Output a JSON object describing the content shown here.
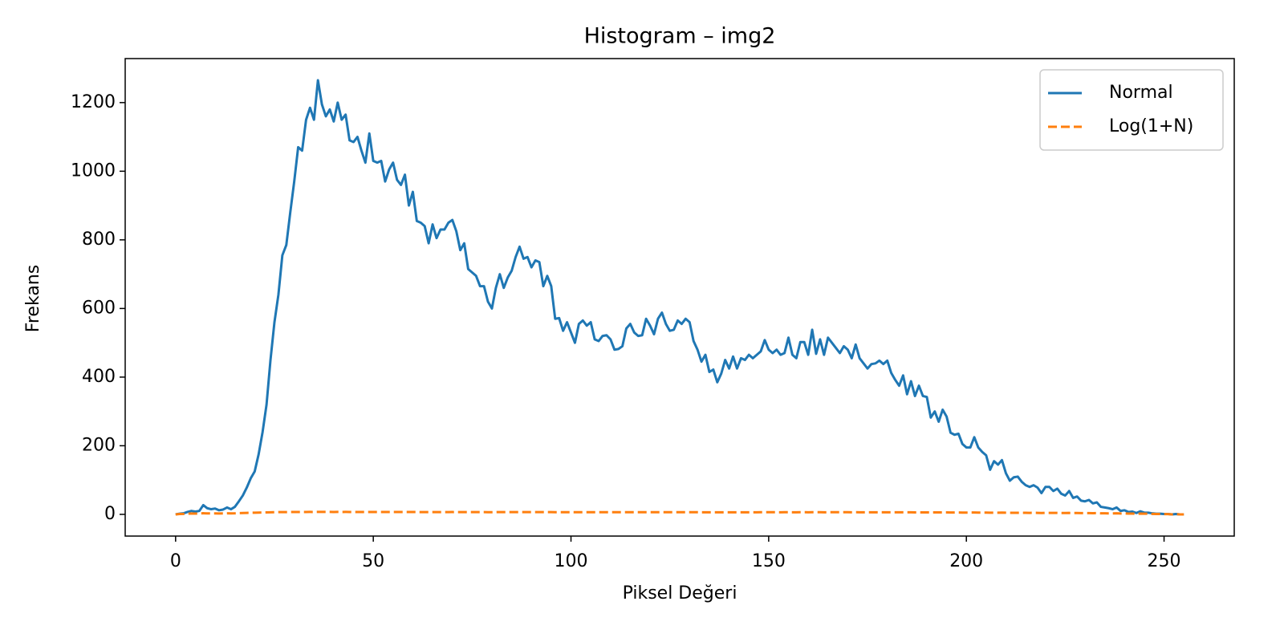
{
  "chart_data": {
    "type": "line",
    "title": "Histogram – img2",
    "x_label": "Piksel Değeri",
    "y_label": "Frekans",
    "x": [
      0,
      1,
      2,
      3,
      4,
      5,
      6,
      7,
      8,
      9,
      10,
      11,
      12,
      13,
      14,
      15,
      16,
      17,
      18,
      19,
      20,
      21,
      22,
      23,
      24,
      25,
      26,
      27,
      28,
      29,
      30,
      31,
      32,
      33,
      34,
      35,
      36,
      37,
      38,
      39,
      40,
      41,
      42,
      43,
      44,
      45,
      46,
      47,
      48,
      49,
      50,
      51,
      52,
      53,
      54,
      55,
      56,
      57,
      58,
      59,
      60,
      61,
      62,
      63,
      64,
      65,
      66,
      67,
      68,
      69,
      70,
      71,
      72,
      73,
      74,
      75,
      76,
      77,
      78,
      79,
      80,
      81,
      82,
      83,
      84,
      85,
      86,
      87,
      88,
      89,
      90,
      91,
      92,
      93,
      94,
      95,
      96,
      97,
      98,
      99,
      100,
      101,
      102,
      103,
      104,
      105,
      106,
      107,
      108,
      109,
      110,
      111,
      112,
      113,
      114,
      115,
      116,
      117,
      118,
      119,
      120,
      121,
      122,
      123,
      124,
      125,
      126,
      127,
      128,
      129,
      130,
      131,
      132,
      133,
      134,
      135,
      136,
      137,
      138,
      139,
      140,
      141,
      142,
      143,
      144,
      145,
      146,
      147,
      148,
      149,
      150,
      151,
      152,
      153,
      154,
      155,
      156,
      157,
      158,
      159,
      160,
      161,
      162,
      163,
      164,
      165,
      166,
      167,
      168,
      169,
      170,
      171,
      172,
      173,
      174,
      175,
      176,
      177,
      178,
      179,
      180,
      181,
      182,
      183,
      184,
      185,
      186,
      187,
      188,
      189,
      190,
      191,
      192,
      193,
      194,
      195,
      196,
      197,
      198,
      199,
      200,
      201,
      202,
      203,
      204,
      205,
      206,
      207,
      208,
      209,
      210,
      211,
      212,
      213,
      214,
      215,
      216,
      217,
      218,
      219,
      220,
      221,
      222,
      223,
      224,
      225,
      226,
      227,
      228,
      229,
      230,
      231,
      232,
      233,
      234,
      235,
      236,
      237,
      238,
      239,
      240,
      241,
      242,
      243,
      244,
      245,
      246,
      247,
      248,
      249,
      250,
      251,
      252,
      253,
      254,
      255
    ],
    "series": [
      {
        "name": "Normal",
        "color": "#1f77b4",
        "dash": false,
        "values": [
          0,
          2,
          3,
          7,
          10,
          8,
          10,
          27,
          18,
          15,
          17,
          12,
          14,
          20,
          15,
          22,
          38,
          55,
          78,
          105,
          125,
          175,
          240,
          320,
          450,
          560,
          640,
          755,
          785,
          880,
          970,
          1070,
          1060,
          1150,
          1185,
          1150,
          1265,
          1195,
          1160,
          1180,
          1145,
          1200,
          1150,
          1165,
          1090,
          1085,
          1100,
          1060,
          1025,
          1110,
          1030,
          1025,
          1030,
          970,
          1005,
          1025,
          975,
          960,
          990,
          900,
          940,
          855,
          850,
          840,
          790,
          845,
          805,
          830,
          830,
          850,
          858,
          825,
          770,
          790,
          715,
          705,
          695,
          665,
          665,
          620,
          600,
          660,
          700,
          660,
          690,
          710,
          750,
          780,
          745,
          750,
          720,
          740,
          735,
          665,
          695,
          665,
          570,
          572,
          535,
          560,
          530,
          500,
          555,
          565,
          550,
          560,
          510,
          505,
          520,
          522,
          510,
          480,
          482,
          490,
          542,
          555,
          530,
          520,
          522,
          570,
          550,
          525,
          570,
          588,
          555,
          535,
          538,
          565,
          555,
          570,
          560,
          505,
          480,
          445,
          465,
          415,
          422,
          385,
          410,
          450,
          425,
          460,
          425,
          455,
          450,
          465,
          455,
          465,
          475,
          508,
          480,
          470,
          480,
          465,
          470,
          515,
          465,
          455,
          502,
          502,
          465,
          538,
          468,
          510,
          465,
          515,
          500,
          485,
          470,
          490,
          480,
          455,
          495,
          455,
          440,
          425,
          438,
          440,
          448,
          438,
          448,
          412,
          392,
          375,
          405,
          350,
          388,
          345,
          375,
          345,
          342,
          282,
          300,
          270,
          305,
          285,
          238,
          232,
          235,
          205,
          195,
          195,
          225,
          195,
          182,
          172,
          130,
          155,
          145,
          158,
          120,
          98,
          108,
          110,
          95,
          85,
          80,
          85,
          78,
          62,
          80,
          80,
          68,
          75,
          60,
          55,
          68,
          48,
          52,
          40,
          38,
          42,
          32,
          35,
          22,
          20,
          18,
          15,
          20,
          10,
          12,
          7,
          8,
          4,
          9,
          5,
          5,
          3,
          2,
          2,
          1,
          1,
          0,
          1,
          0,
          0
        ]
      },
      {
        "name": "Log(1+N)",
        "color": "#ff7f0e",
        "dash": true,
        "values": [
          0,
          1.1,
          1.4,
          2.1,
          2.4,
          2.2,
          2.4,
          3.3,
          2.9,
          2.8,
          2.9,
          2.6,
          2.7,
          3.0,
          2.8,
          3.1,
          3.7,
          4.0,
          4.4,
          4.7,
          4.8,
          5.2,
          5.5,
          5.8,
          6.1,
          6.3,
          6.5,
          6.6,
          6.7,
          6.8,
          6.9,
          7.0,
          7.0,
          7.0,
          7.1,
          7.0,
          7.1,
          7.1,
          7.1,
          7.1,
          7.0,
          7.1,
          7.0,
          7.1,
          7.0,
          7.0,
          7.0,
          7.0,
          6.9,
          7.0,
          6.9,
          6.9,
          6.9,
          6.9,
          6.9,
          6.9,
          6.9,
          6.9,
          6.9,
          6.8,
          6.8,
          6.8,
          6.7,
          6.7,
          6.7,
          6.7,
          6.7,
          6.7,
          6.7,
          6.7,
          6.8,
          6.7,
          6.6,
          6.7,
          6.6,
          6.6,
          6.5,
          6.5,
          6.5,
          6.4,
          6.4,
          6.5,
          6.6,
          6.5,
          6.5,
          6.6,
          6.6,
          6.7,
          6.6,
          6.6,
          6.6,
          6.6,
          6.6,
          6.5,
          6.5,
          6.5,
          6.3,
          6.4,
          6.3,
          6.3,
          6.3,
          6.2,
          6.3,
          6.3,
          6.3,
          6.3,
          6.2,
          6.2,
          6.3,
          6.3,
          6.2,
          6.2,
          6.2,
          6.2,
          6.3,
          6.3,
          6.3,
          6.3,
          6.3,
          6.3,
          6.3,
          6.3,
          6.3,
          6.4,
          6.3,
          6.3,
          6.3,
          6.3,
          6.3,
          6.3,
          6.3,
          6.2,
          6.2,
          6.1,
          6.1,
          6.0,
          6.0,
          6.0,
          6.0,
          6.1,
          6.1,
          6.1,
          6.1,
          6.1,
          6.1,
          6.1,
          6.1,
          6.1,
          6.2,
          6.2,
          6.2,
          6.2,
          6.2,
          6.1,
          6.2,
          6.2,
          6.1,
          6.1,
          6.2,
          6.2,
          6.1,
          6.3,
          6.2,
          6.2,
          6.1,
          6.2,
          6.2,
          6.2,
          6.2,
          6.2,
          6.2,
          6.1,
          6.2,
          6.1,
          6.1,
          6.1,
          6.1,
          6.1,
          6.1,
          6.1,
          6.1,
          6.0,
          6.0,
          5.9,
          6.0,
          5.9,
          6.0,
          5.8,
          5.9,
          5.8,
          5.8,
          5.6,
          5.7,
          5.6,
          5.7,
          5.7,
          5.5,
          5.4,
          5.5,
          5.3,
          5.3,
          5.3,
          5.4,
          5.3,
          5.2,
          5.2,
          4.9,
          5.0,
          5.0,
          5.1,
          4.8,
          4.6,
          4.7,
          4.7,
          4.6,
          4.5,
          4.4,
          4.5,
          4.4,
          4.1,
          4.4,
          4.4,
          4.2,
          4.3,
          4.1,
          4.0,
          4.2,
          3.9,
          4.0,
          3.7,
          3.7,
          3.8,
          3.5,
          3.6,
          3.1,
          3.0,
          2.9,
          2.8,
          3.0,
          2.4,
          2.6,
          2.1,
          2.2,
          1.6,
          2.3,
          1.8,
          1.8,
          1.4,
          1.1,
          1.1,
          0.7,
          0.7,
          0,
          0.7,
          0,
          0
        ]
      }
    ],
    "xlim": [
      -12.75,
      267.75
    ],
    "ylim": [
      -63.25,
      1328.25
    ],
    "xticks": [
      0,
      50,
      100,
      150,
      200,
      250
    ],
    "yticks": [
      0,
      200,
      400,
      600,
      800,
      1000,
      1200
    ],
    "grid": false,
    "legend": "upper right"
  }
}
